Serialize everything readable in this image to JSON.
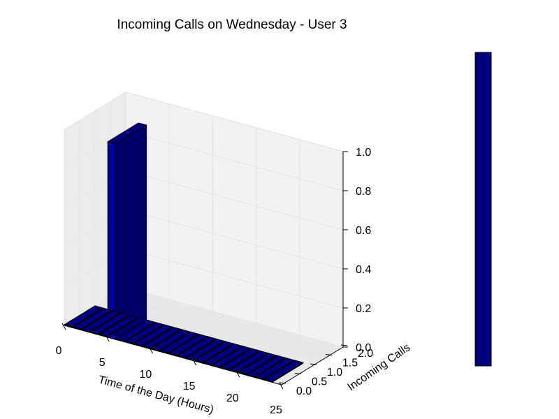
{
  "chart_data": {
    "type": "bar3d",
    "title": "Incoming Calls on Wednesday - User 3",
    "xlabel": "Time of the Day (Hours)",
    "ylabel": "Incoming Calls",
    "zlabel": "",
    "xlim": [
      0,
      25
    ],
    "ylim": [
      0,
      2
    ],
    "zlim": [
      0,
      1
    ],
    "xticks": [
      "0",
      "5",
      "10",
      "15",
      "20",
      "25"
    ],
    "yticks": [
      "0.0",
      "0.5",
      "1.0",
      "1.5",
      "2.0"
    ],
    "zticks": [
      "0.0",
      "0.2",
      "0.4",
      "0.6",
      "0.8",
      "1.0"
    ],
    "bar_hours": [
      0,
      1,
      2,
      3,
      4,
      5,
      6,
      7,
      8,
      9,
      10,
      11,
      12,
      13,
      14,
      15,
      16,
      17,
      18,
      19,
      20,
      21,
      22,
      23
    ],
    "values": [
      0,
      0,
      0,
      0,
      0,
      1,
      0,
      0,
      0,
      0,
      0,
      0,
      0,
      0,
      0,
      0,
      0,
      0,
      0,
      0,
      0,
      0,
      0,
      0
    ],
    "grid": true,
    "colorbar": true,
    "colors": {
      "bar": "#00007f",
      "bar_edge": "#000000",
      "pane": "#f2f2f2",
      "grid": "#e4e4e4"
    }
  }
}
